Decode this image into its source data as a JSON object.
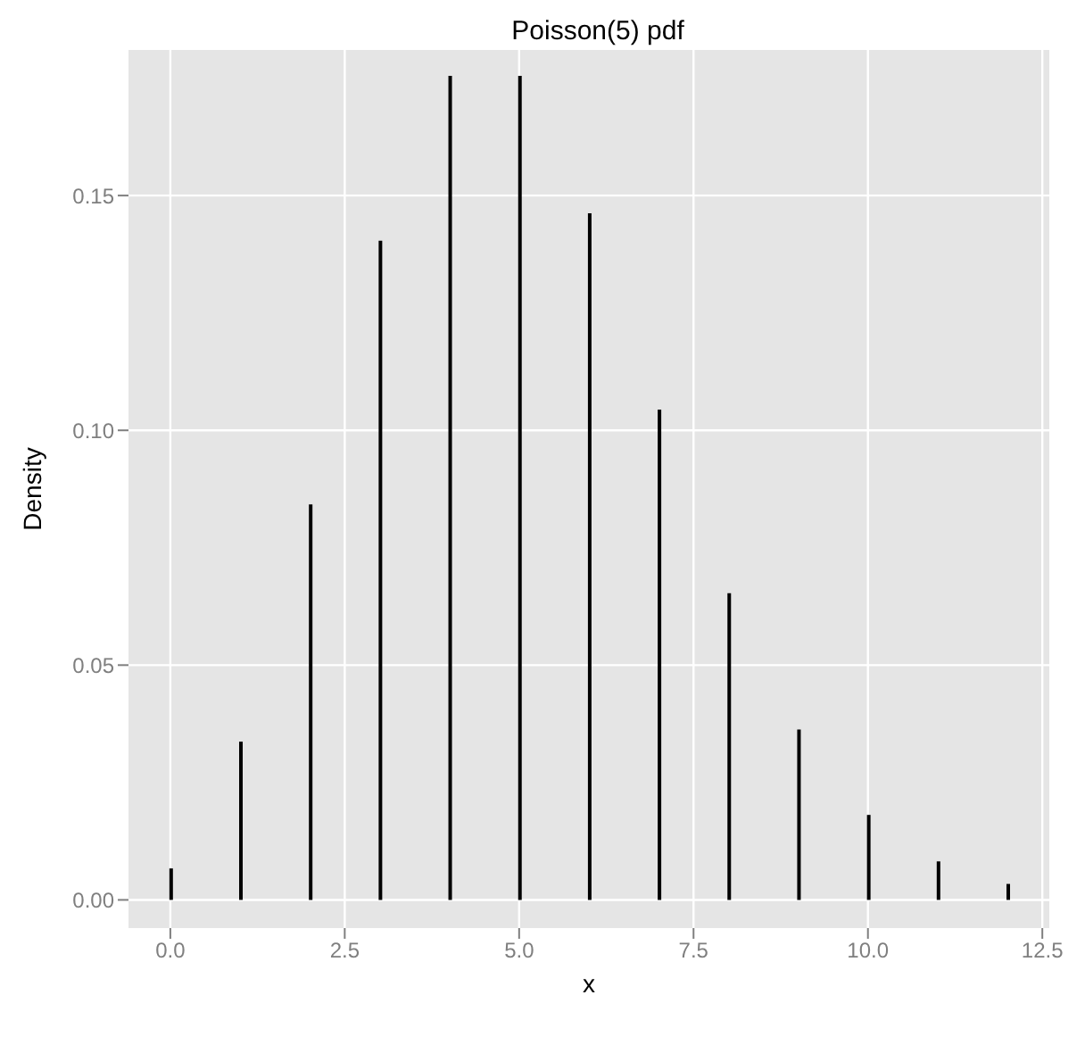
{
  "chart_data": {
    "type": "bar",
    "title": "Poisson(5) pdf",
    "xlabel": "x",
    "ylabel": "Density",
    "x": [
      0,
      1,
      2,
      3,
      4,
      5,
      6,
      7,
      8,
      9,
      10,
      11,
      12
    ],
    "values": [
      0.0067,
      0.0337,
      0.0842,
      0.1404,
      0.1755,
      0.1755,
      0.1462,
      0.1044,
      0.0653,
      0.0363,
      0.0181,
      0.0082,
      0.0034
    ],
    "color": "#000000",
    "xlim": [
      -0.6,
      12.6
    ],
    "xticks": [
      {
        "value": 0,
        "label": "0.0"
      },
      {
        "value": 2.5,
        "label": "2.5"
      },
      {
        "value": 5,
        "label": "5.0"
      },
      {
        "value": 7.5,
        "label": "7.5"
      },
      {
        "value": 10,
        "label": "10.0"
      },
      {
        "value": 12.5,
        "label": "12.5"
      }
    ],
    "ylim": [
      -0.006,
      0.181
    ],
    "yticks": [
      {
        "value": 0,
        "label": "0.00"
      },
      {
        "value": 0.05,
        "label": "0.05"
      },
      {
        "value": 0.1,
        "label": "0.10"
      },
      {
        "value": 0.15,
        "label": "0.15"
      }
    ],
    "grid": true,
    "legend": false
  }
}
